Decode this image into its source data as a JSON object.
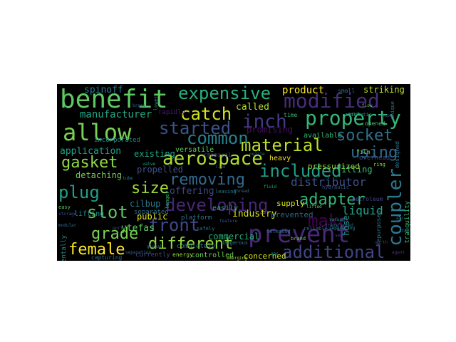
{
  "words": [
    {
      "text": "benefit",
      "color": "#5ec962"
    },
    {
      "text": "allow",
      "color": "#7ad151"
    },
    {
      "text": "prevent",
      "color": "#482878"
    },
    {
      "text": "expensive",
      "color": "#2ab07f"
    },
    {
      "text": "modified",
      "color": "#472d7b"
    },
    {
      "text": "property",
      "color": "#35b779"
    },
    {
      "text": "catch",
      "color": "#d2e21b"
    },
    {
      "text": "inch",
      "color": "#443983"
    },
    {
      "text": "socket",
      "color": "#2c728e"
    },
    {
      "text": "aerospace",
      "color": "#addc30"
    },
    {
      "text": "material",
      "color": "#bddf26"
    },
    {
      "text": "using",
      "color": "#31688e"
    },
    {
      "text": "common",
      "color": "#26828e"
    },
    {
      "text": "started",
      "color": "#3b528b"
    },
    {
      "text": "gasket",
      "color": "#8fd744"
    },
    {
      "text": "included",
      "color": "#1f9e89"
    },
    {
      "text": "removing",
      "color": "#31688e"
    },
    {
      "text": "coupler",
      "color": "#2a788e"
    },
    {
      "text": "size",
      "color": "#9fda3a"
    },
    {
      "text": "plug",
      "color": "#1fa088"
    },
    {
      "text": "developing",
      "color": "#482677"
    },
    {
      "text": "adapter",
      "color": "#32b67a"
    },
    {
      "text": "make",
      "color": "#440154"
    },
    {
      "text": "slot",
      "color": "#5cc863"
    },
    {
      "text": "front",
      "color": "#3e4989"
    },
    {
      "text": "grade",
      "color": "#7ad151"
    },
    {
      "text": "different",
      "color": "#95d840"
    },
    {
      "text": "female",
      "color": "#fde725"
    },
    {
      "text": "additional",
      "color": "#414487"
    },
    {
      "text": "product",
      "color": "#fde725"
    },
    {
      "text": "manufacturer",
      "color": "#22a884"
    },
    {
      "text": "application",
      "color": "#1fa187"
    },
    {
      "text": "distributor",
      "color": "#3b528b"
    },
    {
      "text": "liquid",
      "color": "#20a486"
    },
    {
      "text": "spinoff",
      "color": "#287c8e"
    },
    {
      "text": "striking",
      "color": "#bddf26"
    },
    {
      "text": "called",
      "color": "#b5de2b"
    },
    {
      "text": "promising",
      "color": "#471164"
    },
    {
      "text": "industry",
      "color": "#d8e219"
    },
    {
      "text": "offering",
      "color": "#3e4a89"
    },
    {
      "text": "public",
      "color": "#e5e419"
    },
    {
      "text": "commercial",
      "color": "#29af7f"
    },
    {
      "text": "cilbup",
      "color": "#2a788e"
    },
    {
      "text": "ytefas",
      "color": "#5ec962"
    },
    {
      "text": "detaching",
      "color": "#73d056"
    },
    {
      "text": "propelled",
      "color": "#3b528b"
    },
    {
      "text": "supply",
      "color": "#dde318"
    },
    {
      "text": "prevented",
      "color": "#31688e"
    },
    {
      "text": "concerned",
      "color": "#d0e11c"
    },
    {
      "text": "pressurized",
      "color": "#8bd646"
    },
    {
      "text": "fitting",
      "color": "#3aba76"
    },
    {
      "text": "existing",
      "color": "#22a785"
    },
    {
      "text": "available",
      "color": "#35b779"
    },
    {
      "text": "platform",
      "color": "#2c728e"
    },
    {
      "text": "lifting",
      "color": "#228c8d"
    },
    {
      "text": "heavy",
      "color": "#f1e51d"
    },
    {
      "text": "controlled",
      "color": "#6ccd5a"
    },
    {
      "text": "incorporated",
      "color": "#25848e"
    },
    {
      "text": "rapidly",
      "color": "#481d6f"
    },
    {
      "text": "versatile",
      "color": "#5ec962"
    },
    {
      "text": "easily",
      "color": "#2ab07f"
    },
    {
      "text": "currently",
      "color": "#3f4788"
    },
    {
      "text": "energy",
      "color": "#98d83e"
    },
    {
      "text": "completely",
      "color": "#287d8e"
    },
    {
      "text": "separated",
      "color": "#2c718e"
    },
    {
      "text": "hose",
      "color": "#1f968b"
    },
    {
      "text": "overhead",
      "color": "#3b528b"
    },
    {
      "text": "petroleum",
      "color": "#404688"
    },
    {
      "text": "opened",
      "color": "#4ac16d"
    },
    {
      "text": "small",
      "color": "#31688e"
    },
    {
      "text": "time",
      "color": "#35b779"
    },
    {
      "text": "separating",
      "color": "#1f9a8a"
    },
    {
      "text": "brand",
      "color": "#6ece58"
    },
    {
      "text": "accidentally",
      "color": "#21918c"
    },
    {
      "text": "capturing",
      "color": "#31688e"
    },
    {
      "text": "dangerous",
      "color": "#26828e"
    },
    {
      "text": "lower",
      "color": "#2a788e"
    },
    {
      "text": "chemical",
      "color": "#3e4c8a"
    },
    {
      "text": "released",
      "color": "#2e6e8e"
    },
    {
      "text": "transferred",
      "color": "#2f6b8e"
    },
    {
      "text": "north",
      "color": "#453781"
    },
    {
      "text": "agent",
      "color": "#46337e"
    },
    {
      "text": "film",
      "color": "#73d056"
    },
    {
      "text": "tranquility",
      "color": "#3aba76"
    },
    {
      "text": "repurposed",
      "color": "#29798e"
    },
    {
      "text": "emerging",
      "color": "#a2da37"
    },
    {
      "text": "designed",
      "color": "#2e6f8e"
    },
    {
      "text": "safely",
      "color": "#2a778e"
    },
    {
      "text": "lifted",
      "color": "#6ccd5a"
    },
    {
      "text": "easy",
      "color": "#5ec962"
    },
    {
      "text": "storage",
      "color": "#3b528b"
    },
    {
      "text": "modular",
      "color": "#2f6c8e"
    },
    {
      "text": "separation",
      "color": "#31668e"
    },
    {
      "text": "longer",
      "color": "#3dbc74"
    },
    {
      "text": "leasing",
      "color": "#2a788e"
    },
    {
      "text": "fluid",
      "color": "#20a386"
    },
    {
      "text": "hydraulic",
      "color": "#3b528b"
    },
    {
      "text": "automatic",
      "color": "#26828e"
    },
    {
      "text": "reliable",
      "color": "#2c728e"
    },
    {
      "text": "vacuum",
      "color": "#1f988b"
    },
    {
      "text": "seal",
      "color": "#3e4989"
    },
    {
      "text": "quick",
      "color": "#35b779"
    },
    {
      "text": "ring",
      "color": "#8fd744"
    },
    {
      "text": "steel",
      "color": "#2c728e"
    },
    {
      "text": "brass",
      "color": "#31688e"
    },
    {
      "text": "valve",
      "color": "#22a884"
    },
    {
      "text": "port",
      "color": "#3b528b"
    },
    {
      "text": "tube",
      "color": "#26828e"
    },
    {
      "text": "nozzle",
      "color": "#2a788e"
    },
    {
      "text": "thread",
      "color": "#2f6c8e"
    },
    {
      "text": "flow",
      "color": "#5ec962"
    },
    {
      "text": "pipe",
      "color": "#3e4989"
    },
    {
      "text": "unique",
      "color": "#2a788e"
    },
    {
      "text": "agreement",
      "color": "#26828e"
    },
    {
      "text": "feature",
      "color": "#3b528b"
    },
    {
      "text": "global",
      "color": "#2c728e"
    },
    {
      "text": "line",
      "color": "#3e4989"
    },
    {
      "text": "gas",
      "color": "#21918c"
    },
    {
      "text": "air",
      "color": "#31688e"
    }
  ]
}
